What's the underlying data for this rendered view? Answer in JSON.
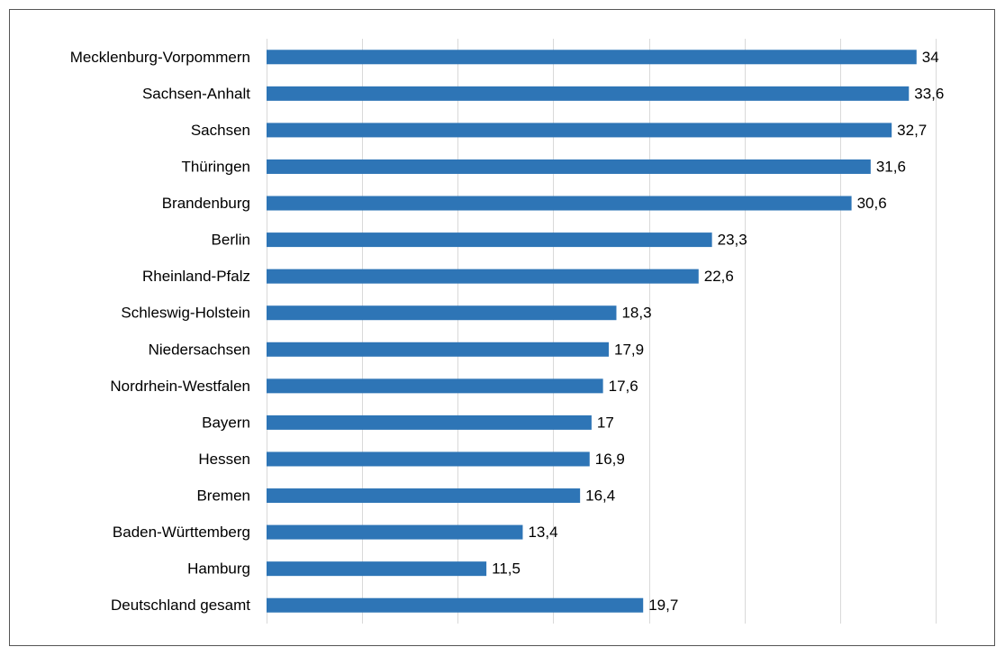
{
  "chart_data": {
    "type": "barh",
    "categories": [
      "Mecklenburg-Vorpommern",
      "Sachsen-Anhalt",
      "Sachsen",
      "Thüringen",
      "Brandenburg",
      "Berlin",
      "Rheinland-Pfalz",
      "Schleswig-Holstein",
      "Niedersachsen",
      "Nordrhein-Westfalen",
      "Bayern",
      "Hessen",
      "Bremen",
      "Baden-Württemberg",
      "Hamburg",
      "Deutschland gesamt"
    ],
    "values": [
      34,
      33.6,
      32.7,
      31.6,
      30.6,
      23.3,
      22.6,
      18.3,
      17.9,
      17.6,
      17,
      16.9,
      16.4,
      13.4,
      11.5,
      19.7
    ],
    "value_labels": [
      "34",
      "33,6",
      "32,7",
      "31,6",
      "30,6",
      "23,3",
      "22,6",
      "18,3",
      "17,9",
      "17,6",
      "17",
      "16,9",
      "16,4",
      "13,4",
      "11,5",
      "19,7"
    ],
    "color": "#2e75b6",
    "xlim": [
      0,
      35
    ],
    "xticks": [
      0,
      5,
      10,
      15,
      20,
      25,
      30,
      35
    ],
    "grid": true
  }
}
